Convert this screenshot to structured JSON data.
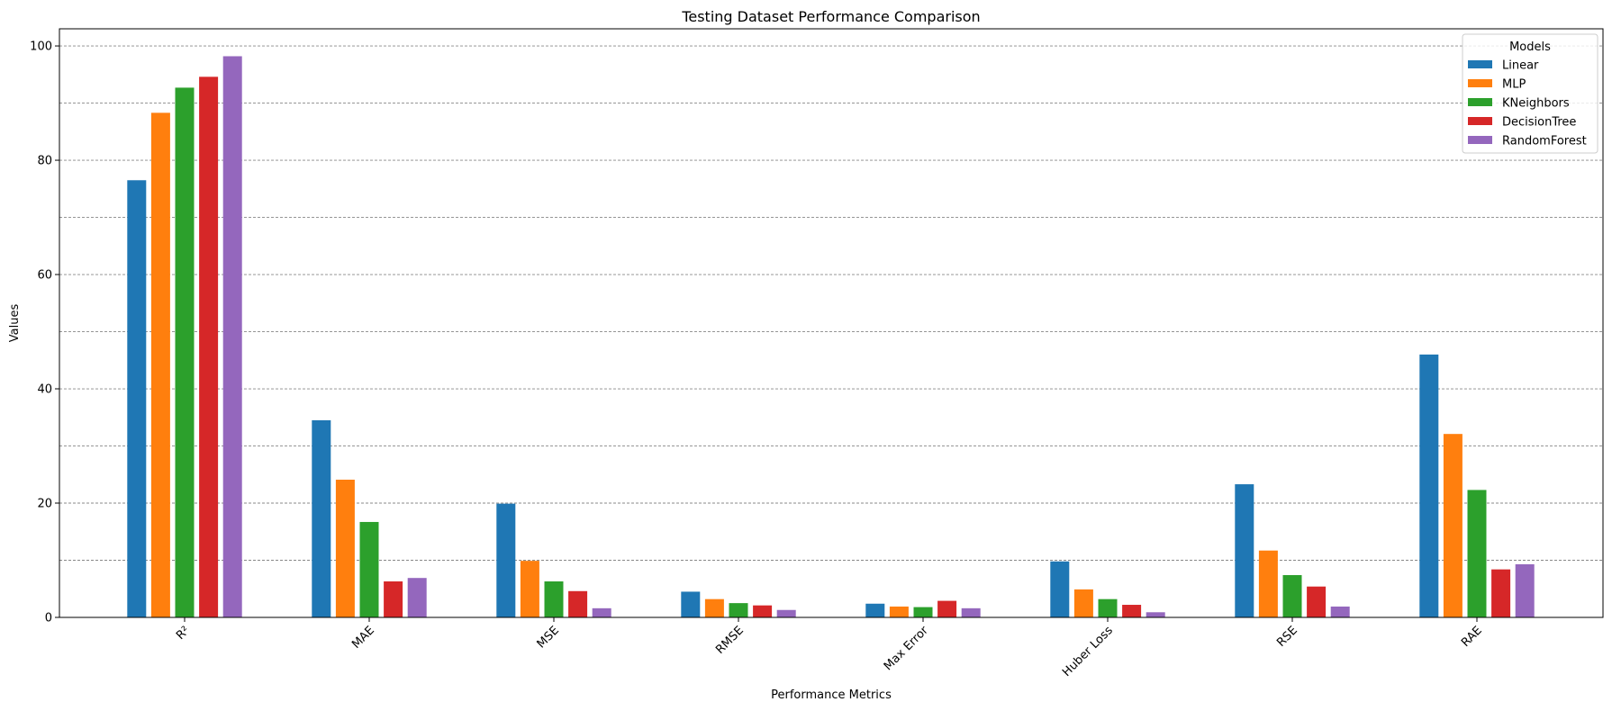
{
  "chart_data": {
    "type": "bar",
    "title": "Testing Dataset Performance Comparison",
    "xlabel": "Performance Metrics",
    "ylabel": "Values",
    "categories": [
      "R²",
      "MAE",
      "MSE",
      "RMSE",
      "Max Error",
      "Huber Loss",
      "RSE",
      "RAE"
    ],
    "ylim": [
      0,
      103
    ],
    "yticks": [
      0,
      20,
      40,
      60,
      80,
      100
    ],
    "grid": "horizontal dashed at every 10",
    "legend": {
      "title": "Models",
      "placement": "top-right"
    },
    "series": [
      {
        "name": "Linear",
        "color": "#1f77b4",
        "values": [
          76.5,
          34.5,
          19.9,
          4.5,
          2.4,
          9.8,
          23.3,
          46.0
        ]
      },
      {
        "name": "MLP",
        "color": "#ff7f0e",
        "values": [
          88.3,
          24.1,
          9.9,
          3.2,
          1.9,
          4.9,
          11.7,
          32.1
        ]
      },
      {
        "name": "KNeighbors",
        "color": "#2ca02c",
        "values": [
          92.7,
          16.7,
          6.3,
          2.5,
          1.8,
          3.2,
          7.4,
          22.3
        ]
      },
      {
        "name": "DecisionTree",
        "color": "#d62728",
        "values": [
          94.6,
          6.3,
          4.6,
          2.1,
          2.9,
          2.2,
          5.4,
          8.4
        ]
      },
      {
        "name": "RandomForest",
        "color": "#9467bd",
        "values": [
          98.2,
          6.9,
          1.6,
          1.3,
          1.6,
          0.9,
          1.9,
          9.3
        ]
      }
    ]
  }
}
